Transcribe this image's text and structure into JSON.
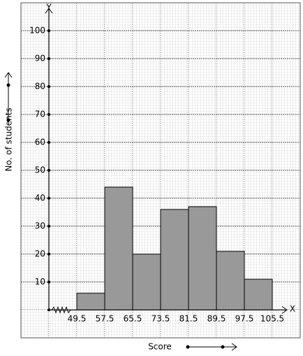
{
  "chart_data": {
    "type": "histogram",
    "x_label": "Score",
    "y_label": "No. of students",
    "x_axis_name": "X",
    "y_axis_name": "Y",
    "bins": [
      49.5,
      57.5,
      65.5,
      73.5,
      81.5,
      89.5,
      97.5,
      105.5
    ],
    "values": [
      6,
      44,
      20,
      36,
      37,
      21,
      11
    ],
    "color": "#999999",
    "xlim": [
      41.5,
      109.5
    ],
    "ylim": [
      0,
      109
    ],
    "yticks": [
      10,
      20,
      30,
      40,
      50,
      60,
      70,
      80,
      90,
      100
    ],
    "grid": true
  }
}
